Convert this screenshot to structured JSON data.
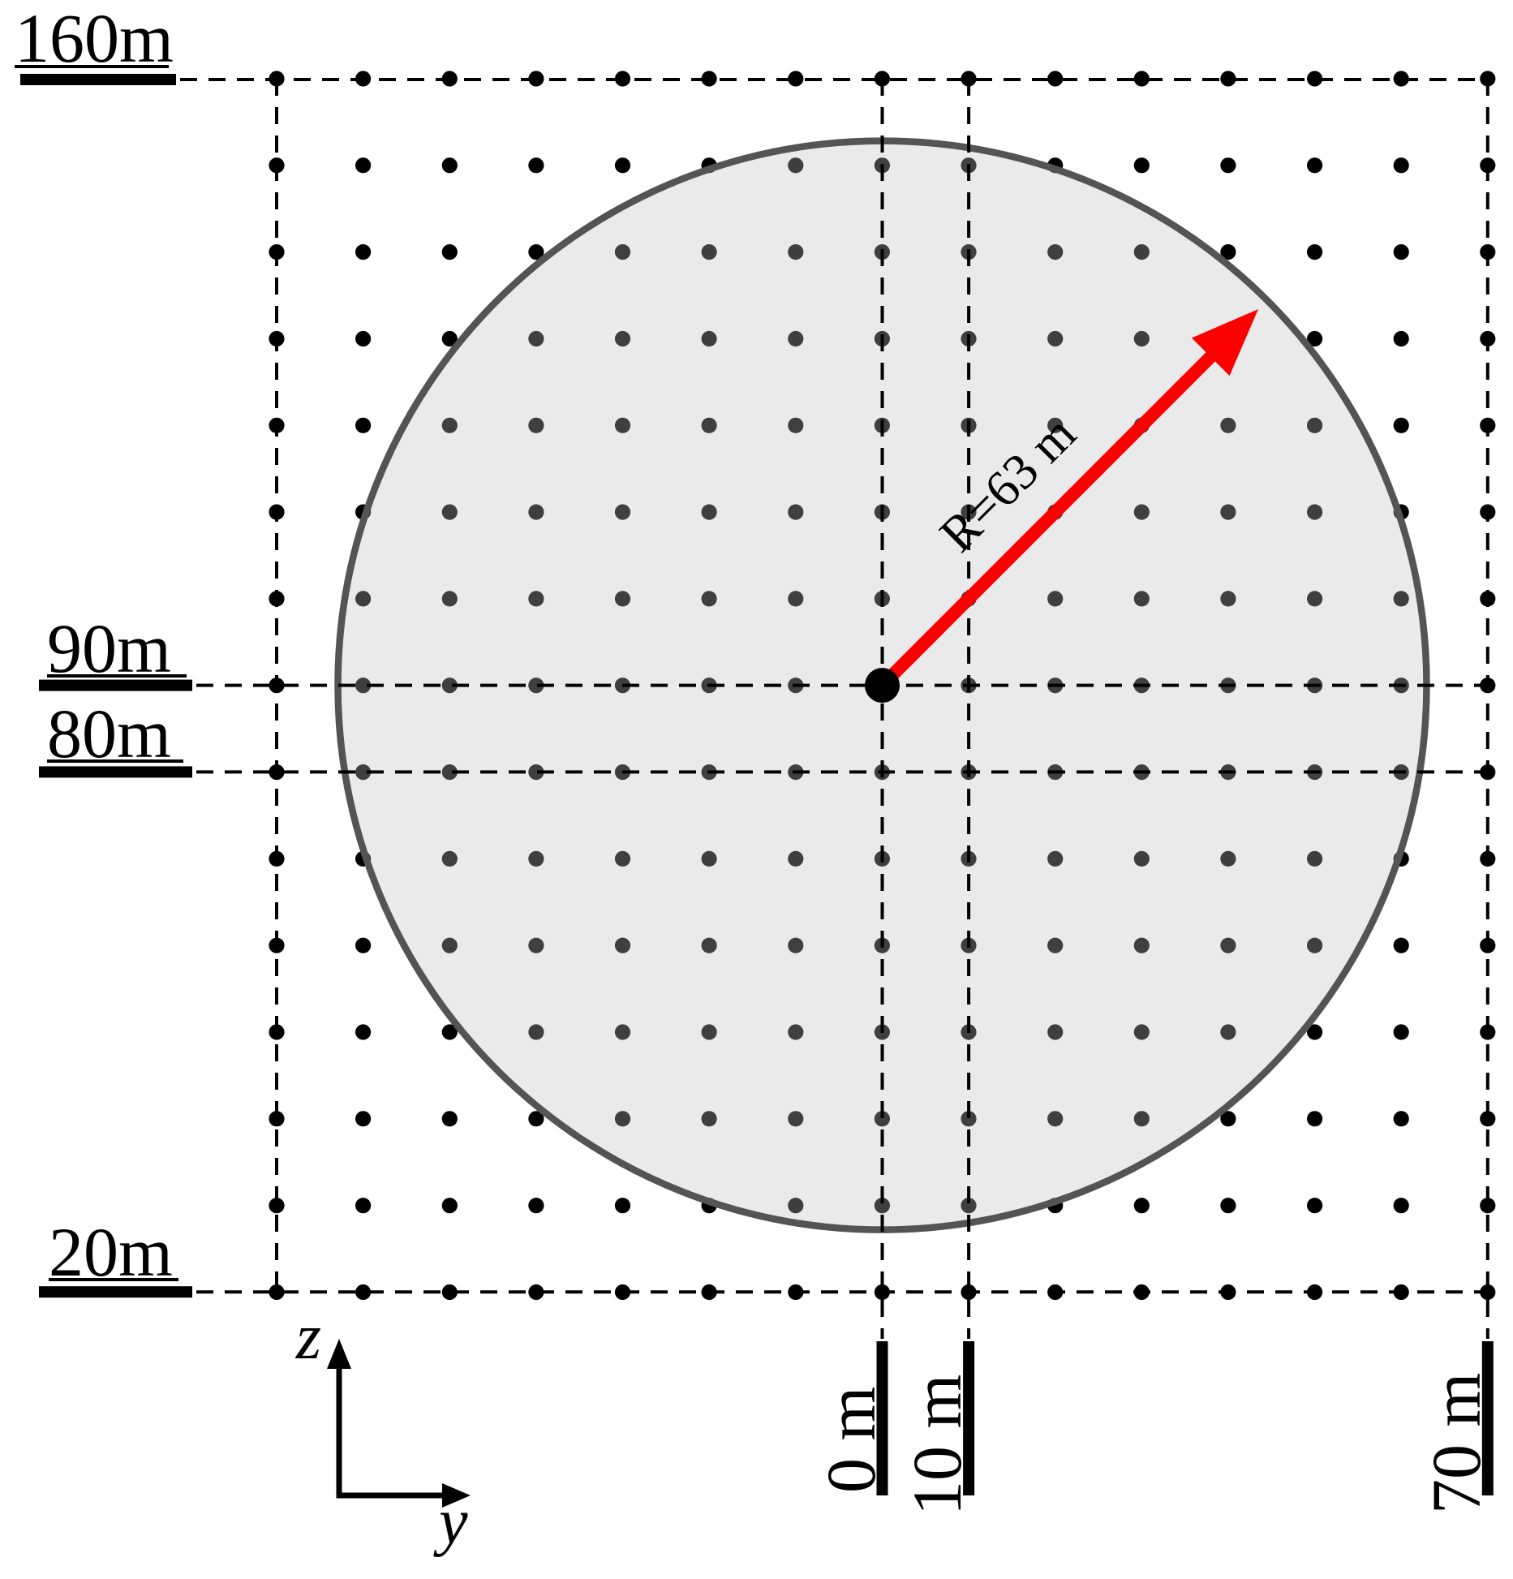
{
  "diagram": {
    "left_rulers": [
      {
        "label": "160m"
      },
      {
        "label": "90m"
      },
      {
        "label": "80m"
      },
      {
        "label": "20m"
      }
    ],
    "bottom_rulers": [
      {
        "label": "0 m"
      },
      {
        "label": "10 m"
      },
      {
        "label": "70 m"
      }
    ],
    "radius_label": "R=63 m",
    "axes": {
      "vertical": "z",
      "horizontal": "y"
    },
    "grid": {
      "rows": 15,
      "cols": 15,
      "spacing_m": 10
    },
    "colors": {
      "dot": "#000000",
      "gridline": "#000000",
      "ruler": "#000000",
      "text": "#000000",
      "circle_fill": "rgba(190,190,190,0.33)",
      "circle_stroke": "#545454",
      "arrow": "#fa0000"
    }
  }
}
